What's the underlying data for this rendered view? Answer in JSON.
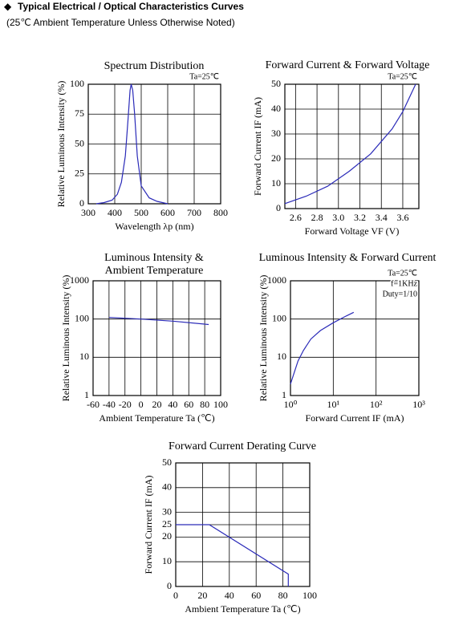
{
  "header": {
    "title": "Typical Electrical / Optical Characteristics Curves",
    "subtitle": "(25℃ Ambient Temperature Unless Otherwise Noted)"
  },
  "chart_data": [
    {
      "type": "line",
      "title": "Spectrum Distribution",
      "x_label": "Wavelength λp (nm)",
      "y_label": "Relative Luminous Intensity (%)",
      "annotations": [
        "Ta=25℃"
      ],
      "x": [
        330,
        360,
        390,
        410,
        425,
        440,
        450,
        458,
        462,
        468,
        475,
        485,
        500,
        530,
        560,
        600
      ],
      "values": [
        0,
        1,
        3,
        8,
        18,
        40,
        70,
        95,
        100,
        95,
        75,
        40,
        15,
        5,
        2,
        0
      ],
      "color": "#2a2ab8",
      "xlim": [
        300,
        800
      ],
      "xticks": [
        300,
        400,
        500,
        600,
        700,
        800
      ],
      "ylim": [
        0,
        100
      ],
      "yticks": [
        0,
        25,
        50,
        75,
        100
      ],
      "grid": true
    },
    {
      "type": "line",
      "title": "Forward Current & Forward Voltage",
      "x_label": "Forward Voltage  VF (V)",
      "y_label": "Forward Current IF (mA)",
      "annotations": [
        "Ta=25℃"
      ],
      "x": [
        2.5,
        2.7,
        2.9,
        3.1,
        3.3,
        3.5,
        3.6,
        3.72
      ],
      "values": [
        2,
        5,
        9,
        15,
        22,
        32,
        39,
        50
      ],
      "color": "#2a2ab8",
      "xlim": [
        2.5,
        3.75
      ],
      "xticks": [
        2.6,
        2.8,
        {
          "value": 3,
          "label": "3.0"
        },
        3.2,
        3.4,
        3.6
      ],
      "ylim": [
        0,
        50
      ],
      "yticks": [
        0,
        10,
        20,
        30,
        40,
        50
      ],
      "grid": true
    },
    {
      "type": "line",
      "title": [
        "Luminous Intensity &",
        "Ambient Temperature"
      ],
      "x_label": "Ambient Temperature Ta (℃)",
      "y_label": "Relative Luminous Intensity (%)",
      "annotations": [],
      "x": [
        -40,
        0,
        40,
        85
      ],
      "values": [
        110,
        100,
        88,
        72
      ],
      "color": "#2a2ab8",
      "xlim": [
        -60,
        100
      ],
      "xticks": [
        -60,
        -40,
        -20,
        0,
        20,
        40,
        60,
        80,
        100
      ],
      "ylim": [
        1,
        1000
      ],
      "yticks": [
        1,
        10,
        100,
        1000
      ],
      "log_y": true,
      "grid": true
    },
    {
      "type": "line",
      "title": "Luminous Intensity & Forward Current",
      "x_label": "Forward Current IF (mA)",
      "y_label": "Relative Luminous Intensity (%)",
      "annotations": [
        "Ta=25℃",
        "f=1KHz",
        "Duty=1/10"
      ],
      "x": [
        1,
        1.5,
        2,
        3,
        5,
        10,
        20,
        30
      ],
      "values": [
        2,
        8,
        15,
        30,
        50,
        80,
        120,
        150
      ],
      "color": "#2a2ab8",
      "xlim": [
        1,
        1000
      ],
      "xticks": [
        {
          "value": 1,
          "label": "10⁰"
        },
        {
          "value": 10,
          "label": "10¹"
        },
        {
          "value": 100,
          "label": "10²"
        },
        {
          "value": 1000,
          "label": "10³"
        }
      ],
      "log_x": true,
      "ylim": [
        1,
        1000
      ],
      "yticks": [
        1,
        10,
        100,
        1000
      ],
      "log_y": true,
      "grid": true
    },
    {
      "type": "line",
      "title": "Forward Current Derating Curve",
      "x_label": "Ambient Temperature Ta (℃)",
      "y_label": "Forward Current IF (mA)",
      "annotations": [],
      "x": [
        0,
        25,
        84,
        84
      ],
      "values": [
        25,
        25,
        5,
        0
      ],
      "color": "#2a2ab8",
      "xlim": [
        0,
        100
      ],
      "xticks": [
        0,
        20,
        40,
        60,
        80,
        100
      ],
      "ylim": [
        0,
        50
      ],
      "yticks": [
        0,
        10,
        20,
        25,
        30,
        40,
        50
      ],
      "grid": true
    }
  ]
}
